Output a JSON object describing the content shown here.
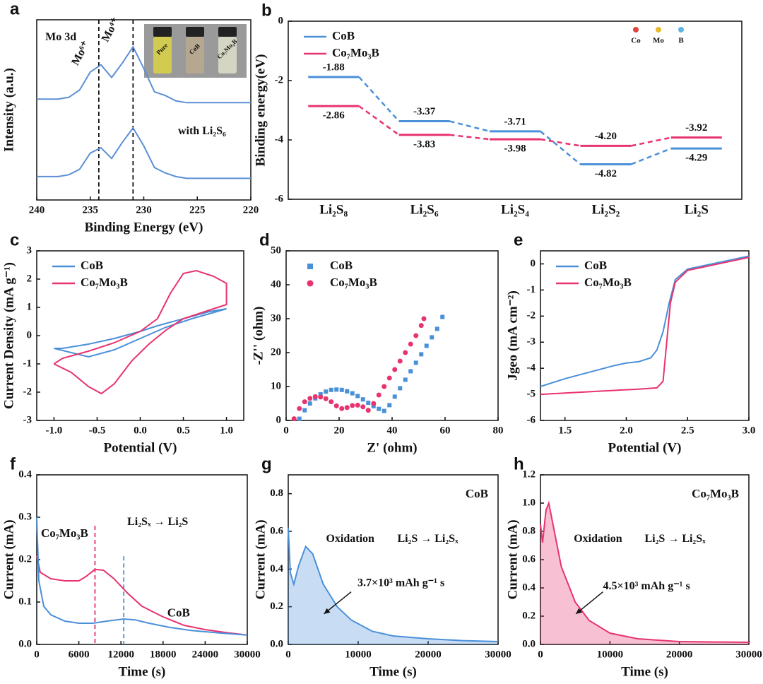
{
  "chart_data": [
    {
      "type": "line",
      "label": "a",
      "xlabel": "Binding Energy (eV)",
      "ylabel": "Intensity (a.u.)",
      "xlim": [
        240,
        220
      ],
      "xticks": [
        240,
        235,
        230,
        225,
        220
      ],
      "ylim": [
        0,
        10
      ],
      "series": [
        {
          "color": "#5b8fd6",
          "x": [
            240,
            239,
            238,
            237,
            236,
            235,
            234,
            233,
            232,
            231,
            230,
            229,
            228,
            227,
            226,
            225,
            224,
            223,
            222,
            221,
            220
          ],
          "values": [
            5.6,
            5.6,
            5.6,
            5.7,
            6.1,
            7.1,
            7.5,
            6.8,
            7.6,
            8.5,
            7.3,
            6.0,
            5.8,
            5.5,
            5.4,
            5.4,
            5.4,
            5.4,
            5.4,
            5.4,
            5.4
          ]
        },
        {
          "color": "#5b8fd6",
          "x": [
            240,
            239,
            238,
            237,
            236,
            235,
            234,
            233,
            232,
            231,
            230,
            229,
            228,
            227,
            226,
            225,
            224,
            223,
            222,
            221,
            220
          ],
          "values": [
            1.3,
            1.3,
            1.3,
            1.4,
            1.7,
            2.6,
            2.9,
            2.3,
            3.2,
            4.0,
            3.0,
            1.8,
            1.5,
            1.3,
            1.2,
            1.2,
            1.2,
            1.2,
            1.2,
            1.2,
            1.2
          ]
        }
      ],
      "vlines": [
        {
          "x": 234.2,
          "color": "#111"
        },
        {
          "x": 231,
          "color": "#111"
        }
      ],
      "annotations": [
        "Mo 3d",
        "Mo⁶⁺",
        "Mo⁴⁺",
        "with Li₂S₆"
      ],
      "inset_labels": [
        "Pure",
        "CoB",
        "Co₇Mo₃B"
      ]
    },
    {
      "type": "level",
      "label": "b",
      "ylabel": "Binding energy(eV)",
      "categories": [
        "Li₂S₈",
        "Li₂S₆",
        "Li₂S₄",
        "Li₂S₂",
        "Li₂S"
      ],
      "ylim": [
        -6,
        0
      ],
      "yticks": [
        0,
        -2,
        -4,
        -6
      ],
      "legend": "upper left",
      "series": [
        {
          "name": "CoB",
          "color": "#4a90d9",
          "values": [
            -1.88,
            -3.37,
            -3.71,
            -4.82,
            -4.29
          ],
          "value_labels": [
            "-1.88",
            "-3.37",
            "-3.71",
            "-4.82",
            "-4.29"
          ]
        },
        {
          "name": "Co₇Mo₃B",
          "color": "#e8336e",
          "values": [
            -2.86,
            -3.83,
            -3.98,
            -4.2,
            -3.92
          ],
          "value_labels": [
            "-2.86",
            "-3.83",
            "-3.98",
            "-4.20",
            "-3.92"
          ]
        }
      ],
      "atom_legend": [
        {
          "name": "Co",
          "color": "#e0443a"
        },
        {
          "name": "Mo",
          "color": "#e8b830"
        },
        {
          "name": "B",
          "color": "#5fb4e6"
        }
      ]
    },
    {
      "type": "line",
      "label": "c",
      "xlabel": "Potential (V)",
      "ylabel": "Current Density (mA g⁻¹)",
      "xlim": [
        -1.2,
        1.2
      ],
      "xticks": [
        {
          "value": -1,
          "label": "-1.0"
        },
        -0.5,
        {
          "value": 0,
          "label": "0.0"
        },
        0.5,
        {
          "value": 1,
          "label": "1.0"
        }
      ],
      "ylim": [
        -3,
        3
      ],
      "yticks": [
        -3,
        -2,
        -1,
        0,
        1,
        2,
        3
      ],
      "legend": "upper left",
      "series": [
        {
          "name": "CoB",
          "color": "#4a90d9",
          "x": [
            -1.0,
            -0.6,
            -0.3,
            0,
            0.3,
            0.6,
            1.0,
            0.8,
            0.5,
            0.2,
            0,
            -0.3,
            -0.6,
            -0.9,
            -1.0
          ],
          "values": [
            -0.45,
            -0.75,
            -0.5,
            -0.1,
            0.3,
            0.6,
            0.95,
            0.85,
            0.6,
            0.35,
            0.15,
            -0.1,
            -0.3,
            -0.45,
            -0.45
          ]
        },
        {
          "name": "Co₇Mo₃B",
          "color": "#e8336e",
          "x": [
            -1.0,
            -0.8,
            -0.6,
            -0.45,
            -0.3,
            -0.1,
            0.1,
            0.3,
            0.5,
            0.7,
            0.9,
            1.0,
            1.0,
            0.85,
            0.65,
            0.5,
            0.35,
            0.2,
            0,
            -0.3,
            -0.6,
            -0.9,
            -1.0
          ],
          "values": [
            -1.0,
            -1.3,
            -1.8,
            -2.05,
            -1.7,
            -0.9,
            -0.3,
            0.2,
            0.6,
            0.8,
            1.0,
            1.1,
            1.85,
            2.1,
            2.3,
            2.2,
            1.5,
            0.6,
            0.15,
            -0.25,
            -0.55,
            -0.8,
            -1.0
          ]
        }
      ]
    },
    {
      "type": "scatter",
      "label": "d",
      "xlabel": "Z' (ohm)",
      "ylabel": "-Z'' (ohm)",
      "xlim": [
        0,
        80
      ],
      "xticks": [
        0,
        20,
        40,
        60,
        80
      ],
      "ylim": [
        0,
        50
      ],
      "yticks": [
        0,
        10,
        20,
        30,
        40,
        50
      ],
      "legend": "upper left",
      "series": [
        {
          "name": "CoB",
          "color": "#4a90d9",
          "marker": "square",
          "x": [
            5,
            7,
            9,
            11,
            13,
            15,
            17,
            19,
            21,
            23,
            25,
            27,
            29,
            31,
            33,
            35,
            37,
            39,
            41,
            43,
            45,
            47,
            49,
            51,
            53,
            55,
            57,
            59
          ],
          "values": [
            0.5,
            3,
            5,
            6.5,
            7.7,
            8.5,
            9,
            9.1,
            9,
            8.6,
            8,
            7.2,
            6.2,
            5.2,
            4.2,
            3.4,
            2.8,
            4.5,
            7,
            9.5,
            12,
            14.5,
            17,
            19.5,
            22,
            24.5,
            27,
            30.5
          ]
        },
        {
          "name": "Co₇Mo₃B",
          "color": "#e8336e",
          "marker": "circle",
          "x": [
            3,
            5,
            7,
            9,
            11,
            13,
            15,
            17,
            19,
            21,
            23,
            25,
            27,
            29,
            31,
            33,
            35,
            37,
            39,
            41,
            43,
            45,
            47,
            49,
            51,
            52
          ],
          "values": [
            0.5,
            3.5,
            5.5,
            6.5,
            7,
            6.9,
            6.4,
            5.5,
            4.3,
            3.5,
            3.8,
            4.4,
            4.5,
            4,
            3,
            5,
            7.5,
            10,
            12.5,
            15,
            17.5,
            20,
            22.5,
            25,
            28,
            30
          ]
        }
      ]
    },
    {
      "type": "line",
      "label": "e",
      "xlabel": "Potential (V)",
      "ylabel": "Jgeo (mA cm⁻²)",
      "xlim": [
        1.3,
        3.0
      ],
      "xticks": [
        1.5,
        {
          "value": 2,
          "label": "2.0"
        },
        2.5,
        {
          "value": 3,
          "label": "3.0"
        }
      ],
      "ylim": [
        -6,
        0.5
      ],
      "yticks": [
        -6,
        -5,
        -4,
        -3,
        -2,
        -1,
        0
      ],
      "legend": "upper left",
      "series": [
        {
          "name": "CoB",
          "color": "#4a90d9",
          "x": [
            1.3,
            1.5,
            1.7,
            1.9,
            2.0,
            2.1,
            2.2,
            2.25,
            2.3,
            2.35,
            2.4,
            2.5,
            2.7,
            2.9,
            3.0
          ],
          "values": [
            -4.7,
            -4.4,
            -4.15,
            -3.9,
            -3.8,
            -3.75,
            -3.6,
            -3.3,
            -2.6,
            -1.5,
            -0.6,
            -0.2,
            0,
            0.2,
            0.3
          ]
        },
        {
          "name": "Co₇Mo₃B",
          "color": "#e8336e",
          "x": [
            1.3,
            1.5,
            1.7,
            1.9,
            2.1,
            2.25,
            2.3,
            2.33,
            2.36,
            2.4,
            2.5,
            2.7,
            2.9,
            3.0
          ],
          "values": [
            -5.0,
            -4.95,
            -4.9,
            -4.85,
            -4.8,
            -4.75,
            -4.5,
            -3.0,
            -1.5,
            -0.7,
            -0.25,
            -0.05,
            0.15,
            0.25
          ]
        }
      ]
    },
    {
      "type": "line",
      "label": "f",
      "xlabel": "Time (s)",
      "ylabel": "Current (mA)",
      "xlim": [
        0,
        30000
      ],
      "xticks": [
        0,
        6000,
        12000,
        18000,
        24000,
        30000
      ],
      "ylim": [
        0,
        0.4
      ],
      "yticks": [
        {
          "value": 0,
          "label": "0.0"
        },
        0.1,
        0.2,
        0.3,
        0.4
      ],
      "series": [
        {
          "name": "Co₇Mo₃B",
          "color": "#e8336e",
          "x": [
            0,
            500,
            2000,
            4000,
            6000,
            7000,
            8300,
            9500,
            11000,
            13000,
            15000,
            18000,
            21000,
            24000,
            27000,
            30000
          ],
          "values": [
            0.21,
            0.17,
            0.155,
            0.15,
            0.15,
            0.16,
            0.177,
            0.175,
            0.155,
            0.12,
            0.09,
            0.065,
            0.045,
            0.035,
            0.028,
            0.022
          ]
        },
        {
          "name": "CoB",
          "color": "#4a90d9",
          "x": [
            0,
            300,
            1000,
            2000,
            4000,
            6000,
            8000,
            10000,
            12400,
            14000,
            16000,
            19000,
            22000,
            26000,
            30000
          ],
          "values": [
            0.3,
            0.15,
            0.09,
            0.07,
            0.055,
            0.05,
            0.05,
            0.055,
            0.06,
            0.058,
            0.05,
            0.04,
            0.033,
            0.027,
            0.022
          ]
        }
      ],
      "vlines": [
        {
          "x": 8300,
          "color": "#e8336e"
        },
        {
          "x": 12400,
          "color": "#4a90d9"
        }
      ],
      "annotations": [
        "Li₂Sₓ → Li₂S"
      ]
    },
    {
      "type": "area",
      "label": "g",
      "xlabel": "Time (s)",
      "ylabel": "Current (mA)",
      "xlim": [
        0,
        30000
      ],
      "xticks": [
        0,
        10000,
        20000,
        30000
      ],
      "ylim": [
        0,
        0.9
      ],
      "yticks": [
        {
          "value": 0,
          "label": "0.0"
        },
        0.2,
        0.4,
        0.6,
        0.8
      ],
      "legend": "upper right",
      "series": [
        {
          "name": "CoB",
          "color": "#4a90d9",
          "x": [
            0,
            300,
            800,
            1500,
            2500,
            3500,
            5000,
            7000,
            9000,
            12000,
            15000,
            20000,
            25000,
            30000
          ],
          "values": [
            0.62,
            0.38,
            0.32,
            0.42,
            0.52,
            0.48,
            0.32,
            0.2,
            0.13,
            0.07,
            0.045,
            0.03,
            0.02,
            0.015
          ]
        }
      ],
      "annotations": [
        "Oxidation",
        "Li₂S → Li₂Sₓ",
        "3.7×10³ mAh g⁻¹ s"
      ]
    },
    {
      "type": "area",
      "label": "h",
      "xlabel": "Time (s)",
      "ylabel": "Current (mA)",
      "xlim": [
        0,
        30000
      ],
      "xticks": [
        0,
        10000,
        20000,
        30000
      ],
      "ylim": [
        0,
        1.2
      ],
      "yticks": [
        {
          "value": 0,
          "label": "0.0"
        },
        0.2,
        0.4,
        0.6,
        0.8,
        {
          "value": 1,
          "label": "1.0"
        },
        1.2
      ],
      "legend": "upper right",
      "series": [
        {
          "name": "Co₇Mo₃B",
          "color": "#e8336e",
          "x": [
            0,
            300,
            800,
            1200,
            1800,
            3000,
            5000,
            7000,
            10000,
            14000,
            20000,
            30000
          ],
          "values": [
            0.85,
            0.72,
            0.95,
            1.0,
            0.85,
            0.55,
            0.3,
            0.17,
            0.08,
            0.04,
            0.02,
            0.015
          ]
        }
      ],
      "annotations": [
        "Oxidation",
        "Li₂S → Li₂Sₓ",
        "4.5×10³ mAh g⁻¹ s"
      ]
    }
  ]
}
